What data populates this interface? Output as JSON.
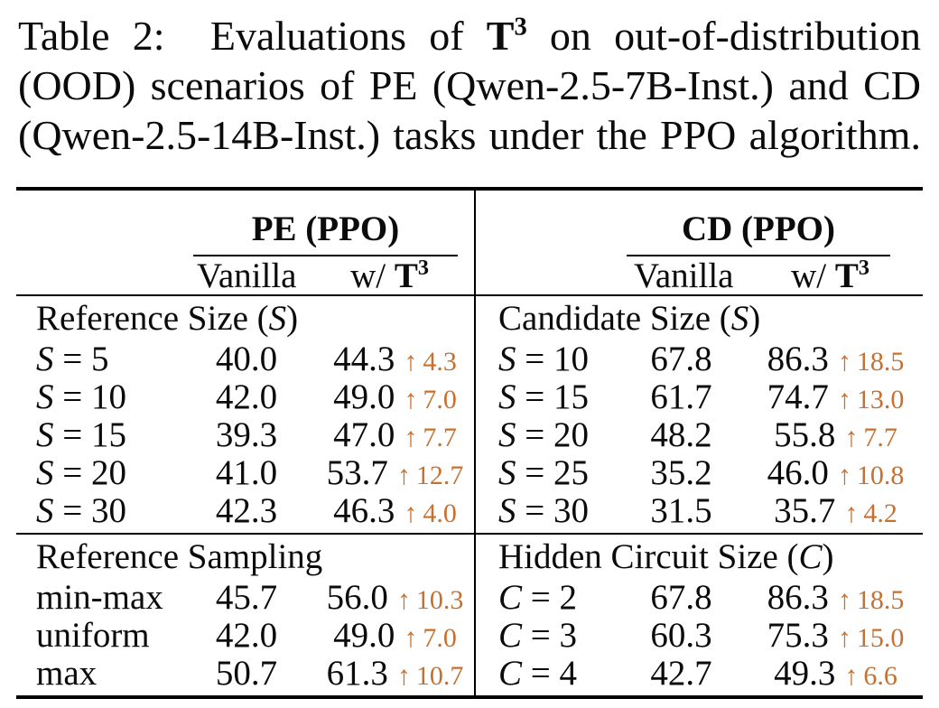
{
  "colors": {
    "accent": "#C8702E",
    "text": "#000000",
    "background": "#FFFFFF"
  },
  "caption": {
    "line1_pre": "Table 2:  Evaluations of ",
    "t3_base": "T",
    "t3_sup": "3",
    "line1_post": " on out-of-distribution",
    "line2": "(OOD) scenarios of PE (Qwen-2.5-7B-Inst.) and CD",
    "line3": "(Qwen-2.5-14B-Inst.) tasks under the PPO algorithm."
  },
  "table": {
    "arrow_icon": "↑",
    "groups": [
      {
        "title": "PE (PPO)"
      },
      {
        "title": "CD (PPO)"
      }
    ],
    "subheader": {
      "vanilla": "Vanilla",
      "wt3_prefix": "w/ ",
      "wt3_base": "T",
      "wt3_sup": "3"
    },
    "sections": [
      {
        "left": {
          "group_pre": "Reference Size (",
          "group_var": "S",
          "group_post": ")",
          "rows": [
            {
              "var": "S",
              "rest": " = 5",
              "vanilla": "40.0",
              "wt3": "44.3",
              "delta": "4.3"
            },
            {
              "var": "S",
              "rest": " = 10",
              "vanilla": "42.0",
              "wt3": "49.0",
              "delta": "7.0"
            },
            {
              "var": "S",
              "rest": " = 15",
              "vanilla": "39.3",
              "wt3": "47.0",
              "delta": "7.7"
            },
            {
              "var": "S",
              "rest": " = 20",
              "vanilla": "41.0",
              "wt3": "53.7",
              "delta": "12.7"
            },
            {
              "var": "S",
              "rest": " = 30",
              "vanilla": "42.3",
              "wt3": "46.3",
              "delta": "4.0"
            }
          ]
        },
        "right": {
          "group_pre": "Candidate Size (",
          "group_var": "S",
          "group_post": ")",
          "rows": [
            {
              "var": "S",
              "rest": " = 10",
              "vanilla": "67.8",
              "wt3": "86.3",
              "delta": "18.5"
            },
            {
              "var": "S",
              "rest": " = 15",
              "vanilla": "61.7",
              "wt3": "74.7",
              "delta": "13.0"
            },
            {
              "var": "S",
              "rest": " = 20",
              "vanilla": "48.2",
              "wt3": "55.8",
              "delta": "7.7"
            },
            {
              "var": "S",
              "rest": " = 25",
              "vanilla": "35.2",
              "wt3": "46.0",
              "delta": "10.8"
            },
            {
              "var": "S",
              "rest": " = 30",
              "vanilla": "31.5",
              "wt3": "35.7",
              "delta": "4.2"
            }
          ]
        }
      },
      {
        "left": {
          "group_pre": "Reference Sampling",
          "group_var": "",
          "group_post": "",
          "rows": [
            {
              "text": "min-max",
              "vanilla": "45.7",
              "wt3": "56.0",
              "delta": "10.3"
            },
            {
              "text": "uniform",
              "vanilla": "42.0",
              "wt3": "49.0",
              "delta": "7.0"
            },
            {
              "text": "max",
              "vanilla": "50.7",
              "wt3": "61.3",
              "delta": "10.7"
            }
          ]
        },
        "right": {
          "group_pre": "Hidden Circuit Size (",
          "group_var": "C",
          "group_post": ")",
          "rows": [
            {
              "var": "C",
              "rest": " = 2",
              "vanilla": "67.8",
              "wt3": "86.3",
              "delta": "18.5"
            },
            {
              "var": "C",
              "rest": " = 3",
              "vanilla": "60.3",
              "wt3": "75.3",
              "delta": "15.0"
            },
            {
              "var": "C",
              "rest": " = 4",
              "vanilla": "42.7",
              "wt3": "49.3",
              "delta": "6.6"
            }
          ]
        }
      }
    ]
  }
}
